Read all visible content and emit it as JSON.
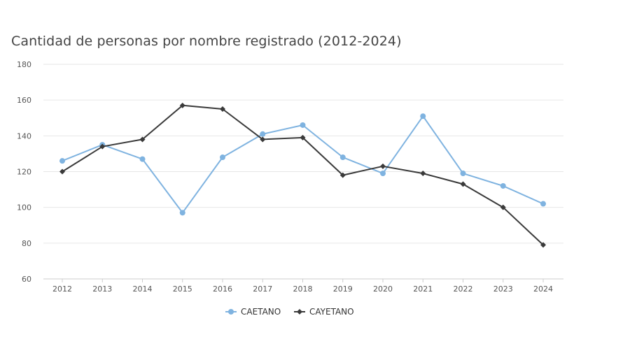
{
  "chart_data": {
    "type": "line",
    "title": "Cantidad de personas por nombre registrado (2012-2024)",
    "xlabel": "",
    "ylabel": "",
    "categories": [
      "2012",
      "2013",
      "2014",
      "2015",
      "2016",
      "2017",
      "2018",
      "2019",
      "2020",
      "2021",
      "2022",
      "2023",
      "2024"
    ],
    "ylim": [
      60,
      180
    ],
    "yticks": [
      60,
      80,
      100,
      120,
      140,
      160,
      180
    ],
    "grid": true,
    "legend_position": "bottom",
    "series": [
      {
        "name": "CAETANO",
        "color": "#7fb3e0",
        "marker": "circle",
        "values": [
          126,
          135,
          127,
          97,
          128,
          141,
          146,
          128,
          119,
          151,
          119,
          112,
          102
        ]
      },
      {
        "name": "CAYETANO",
        "color": "#3a3a3a",
        "marker": "diamond",
        "values": [
          120,
          134,
          138,
          157,
          155,
          138,
          139,
          118,
          123,
          119,
          113,
          100,
          79
        ]
      }
    ]
  }
}
